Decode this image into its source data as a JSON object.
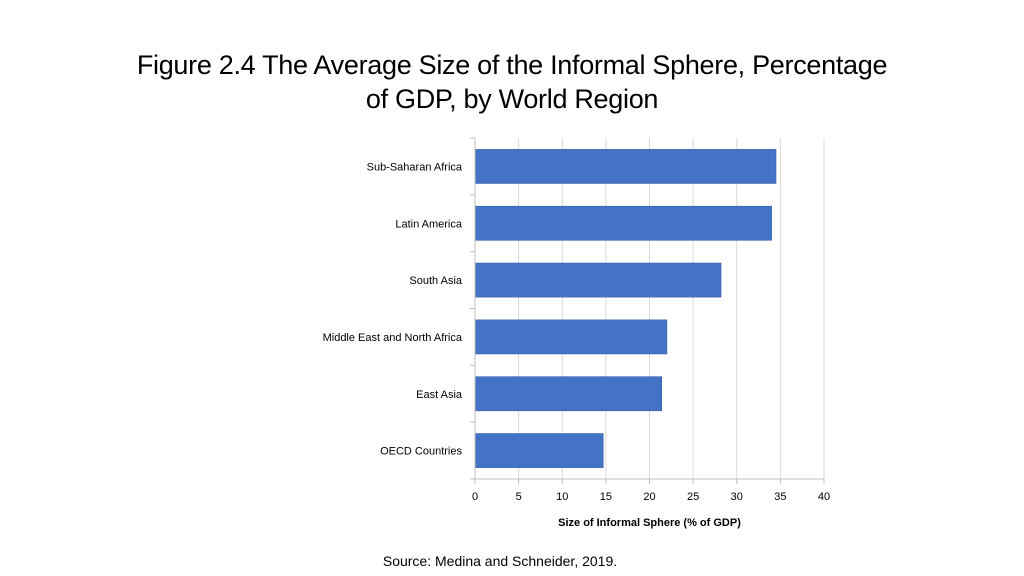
{
  "slide": {
    "title_line1": "Figure 2.4 The Average Size of the Informal Sphere, Percentage",
    "title_line2": "of GDP, by World Region",
    "source": "Source: Medina and Schneider, 2019."
  },
  "chart_data": {
    "type": "bar",
    "orientation": "horizontal",
    "categories": [
      "Sub-Saharan Africa",
      "Latin America",
      "South Asia",
      "Middle East and North Africa",
      "East Asia",
      "OECD Countries"
    ],
    "values": [
      34.5,
      34.0,
      28.2,
      22.0,
      21.4,
      14.7
    ],
    "title": "",
    "xlabel": "Size of Informal Sphere (% of GDP)",
    "ylabel": "",
    "xlim": [
      0,
      40
    ],
    "xticks": [
      0,
      5,
      10,
      15,
      20,
      25,
      30,
      35,
      40
    ],
    "grid": "vertical",
    "legend": "none",
    "bar_color": "#4472C4",
    "grid_color": "#D9D9D9",
    "axis_color": "#BFBFBF"
  }
}
